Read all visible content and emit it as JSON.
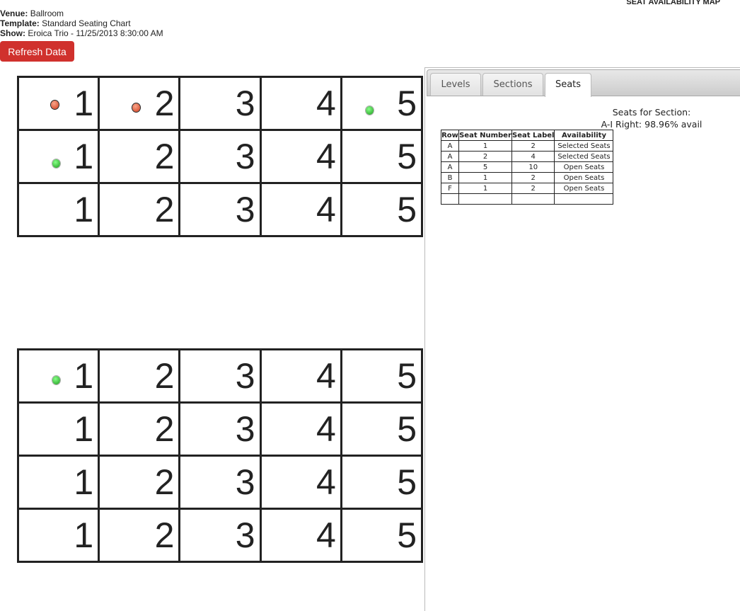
{
  "header": {
    "title": "SEAT AVAILABILITY MAP",
    "venue_label": "Venue:",
    "venue": "Ballroom",
    "template_label": "Template:",
    "template": "Standard Seating Chart",
    "show_label": "Show:",
    "show": "Eroica Trio - 11/25/2013 8:30:00 AM",
    "refresh_label": "Refresh Data"
  },
  "map": {
    "top_grid": [
      [
        "1",
        "2",
        "3",
        "4",
        "5"
      ],
      [
        "1",
        "2",
        "3",
        "4",
        "5"
      ],
      [
        "1",
        "2",
        "3",
        "4",
        "5"
      ]
    ],
    "bottom_grid": [
      [
        "1",
        "2",
        "3",
        "4",
        "5"
      ],
      [
        "1",
        "2",
        "3",
        "4",
        "5"
      ],
      [
        "1",
        "2",
        "3",
        "4",
        "5"
      ],
      [
        "1",
        "2",
        "3",
        "4",
        "5"
      ]
    ],
    "colors": {
      "selected": "#d23a1a",
      "open": "#1a9a1a"
    }
  },
  "panel": {
    "tabs": [
      {
        "label": "Levels"
      },
      {
        "label": "Sections"
      },
      {
        "label": "Seats",
        "active": true
      }
    ],
    "heading_line1": "Seats for Section:",
    "heading_line2": "A-I Right: 98.96% avail",
    "columns": [
      "Row",
      "Seat Number",
      "Seat Label",
      "Availability"
    ],
    "rows": [
      [
        "A",
        "1",
        "2",
        "Selected Seats"
      ],
      [
        "A",
        "2",
        "4",
        "Selected Seats"
      ],
      [
        "A",
        "5",
        "10",
        "Open Seats"
      ],
      [
        "B",
        "1",
        "2",
        "Open Seats"
      ],
      [
        "F",
        "1",
        "2",
        "Open Seats"
      ]
    ]
  }
}
